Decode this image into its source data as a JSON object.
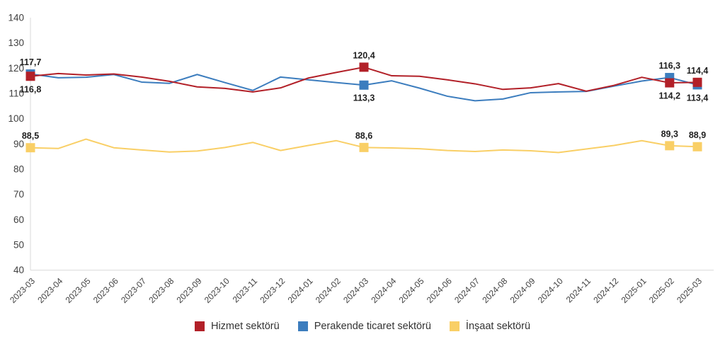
{
  "chart_data": {
    "type": "line",
    "title": "",
    "xlabel": "",
    "ylabel": "",
    "ylim": [
      40,
      140
    ],
    "y_ticks": [
      140,
      130,
      120,
      110,
      100,
      90,
      80,
      70,
      60,
      50,
      40
    ],
    "grid": false,
    "legend_position": "bottom",
    "decimal_separator": ",",
    "x_labels": [
      "2023-03",
      "2023-04",
      "2023-05",
      "2023-06",
      "2023-07",
      "2023-08",
      "2023-09",
      "2023-10",
      "2023-11",
      "2023-12",
      "2024-01",
      "2024-02",
      "2024-03",
      "2024-04",
      "2024-05",
      "2024-06",
      "2024-07",
      "2024-08",
      "2024-09",
      "2024-10",
      "2024-11",
      "2024-12",
      "2025-01",
      "2025-02",
      "2025-03"
    ],
    "series": [
      {
        "name": "Hizmet sektörü",
        "color": "#B22028",
        "values": [
          116.8,
          117.9,
          117.3,
          117.7,
          116.5,
          114.8,
          112.6,
          112.0,
          110.6,
          112.2,
          116.1,
          118.3,
          120.4,
          117.0,
          116.8,
          115.4,
          113.8,
          111.6,
          112.2,
          113.9,
          110.9,
          113.2,
          116.4,
          114.2,
          114.4
        ],
        "annotations": [
          {
            "i": 0,
            "text": "116,8",
            "pos": "below"
          },
          {
            "i": 12,
            "text": "120,4",
            "pos": "above"
          },
          {
            "i": 23,
            "text": "114,2",
            "pos": "below"
          },
          {
            "i": 24,
            "text": "114,4",
            "pos": "above"
          }
        ]
      },
      {
        "name": "Perakende ticaret sektörü",
        "color": "#3C7DBE",
        "values": [
          117.7,
          116.2,
          116.4,
          117.5,
          114.5,
          114.0,
          117.5,
          114.3,
          111.2,
          116.5,
          115.4,
          114.3,
          113.3,
          115.0,
          112.1,
          108.9,
          107.1,
          107.8,
          110.3,
          110.6,
          110.8,
          112.9,
          114.9,
          116.3,
          113.4
        ],
        "annotations": [
          {
            "i": 0,
            "text": "117,7",
            "pos": "above"
          },
          {
            "i": 12,
            "text": "113,3",
            "pos": "below"
          },
          {
            "i": 23,
            "text": "116,3",
            "pos": "above"
          },
          {
            "i": 24,
            "text": "113,4",
            "pos": "below"
          }
        ]
      },
      {
        "name": "İnşaat sektörü",
        "color": "#F9CF66",
        "values": [
          88.5,
          88.2,
          91.9,
          88.5,
          87.6,
          86.8,
          87.2,
          88.6,
          90.6,
          87.4,
          89.4,
          91.3,
          88.6,
          88.4,
          88.1,
          87.4,
          87.0,
          87.6,
          87.3,
          86.6,
          88.0,
          89.4,
          91.3,
          89.3,
          88.9
        ],
        "annotations": [
          {
            "i": 0,
            "text": "88,5",
            "pos": "above"
          },
          {
            "i": 12,
            "text": "88,6",
            "pos": "above"
          },
          {
            "i": 23,
            "text": "89,3",
            "pos": "above"
          },
          {
            "i": 24,
            "text": "88,9",
            "pos": "above"
          }
        ]
      }
    ],
    "style": {
      "axis_line_color": "#D9D9D9",
      "tick_label_color": "#404040",
      "annotation_color": "#1F1F1F"
    }
  },
  "legend": {
    "items": [
      {
        "label": "Hizmet sektörü",
        "color": "#B22028"
      },
      {
        "label": "Perakende ticaret sektörü",
        "color": "#3C7DBE"
      },
      {
        "label": "İnşaat sektörü",
        "color": "#F9CF66"
      }
    ]
  }
}
